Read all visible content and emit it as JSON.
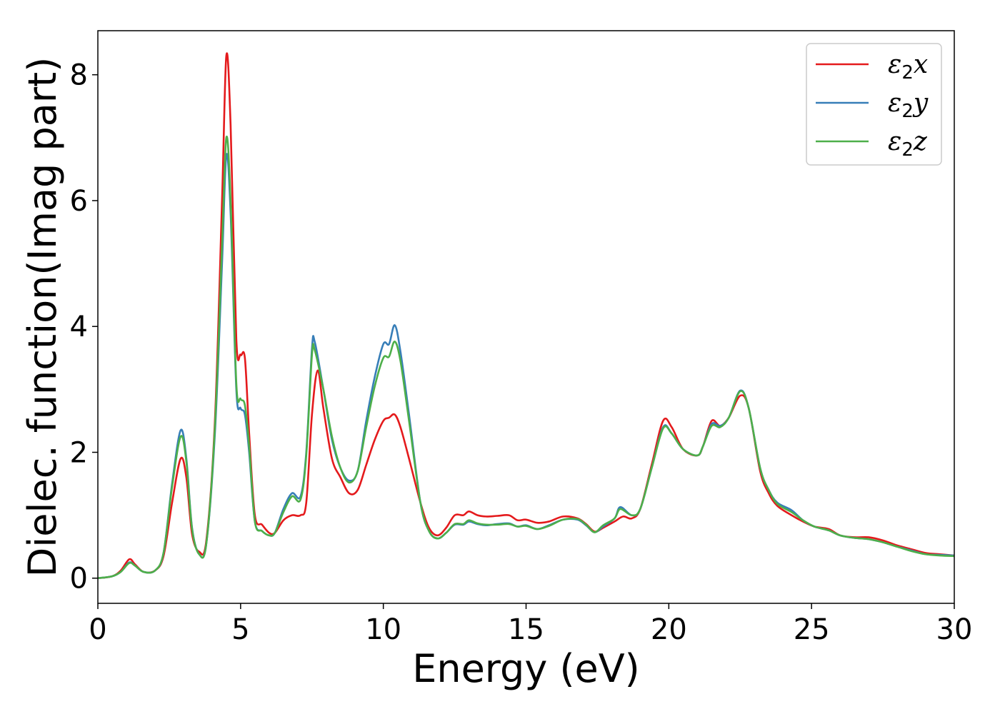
{
  "chart_data": {
    "type": "line",
    "title": "",
    "xlabel": "Energy (eV)",
    "ylabel": "Dielec. function(Imag part)",
    "xlim": [
      0,
      30
    ],
    "ylim": [
      -0.4,
      8.7
    ],
    "xticks": [
      0,
      5,
      10,
      15,
      20,
      25,
      30
    ],
    "yticks": [
      0,
      2,
      4,
      6,
      8
    ],
    "grid": false,
    "legend_position": "top-right",
    "series": [
      {
        "name": "ε2x",
        "legend": {
          "base": "ε",
          "sub": "2",
          "tail": "x"
        },
        "color": "#e41a1c",
        "points": [
          [
            0,
            0
          ],
          [
            0.5,
            0.03
          ],
          [
            0.8,
            0.12
          ],
          [
            1.1,
            0.3
          ],
          [
            1.3,
            0.22
          ],
          [
            1.6,
            0.1
          ],
          [
            2.0,
            0.12
          ],
          [
            2.3,
            0.35
          ],
          [
            2.6,
            1.2
          ],
          [
            2.9,
            1.9
          ],
          [
            3.1,
            1.6
          ],
          [
            3.3,
            0.7
          ],
          [
            3.55,
            0.42
          ],
          [
            3.8,
            0.6
          ],
          [
            4.1,
            2.5
          ],
          [
            4.35,
            6.0
          ],
          [
            4.5,
            8.3
          ],
          [
            4.65,
            7.2
          ],
          [
            4.85,
            3.8
          ],
          [
            5.0,
            3.55
          ],
          [
            5.15,
            3.5
          ],
          [
            5.3,
            2.3
          ],
          [
            5.5,
            1.0
          ],
          [
            5.75,
            0.85
          ],
          [
            6.0,
            0.72
          ],
          [
            6.2,
            0.72
          ],
          [
            6.5,
            0.92
          ],
          [
            6.8,
            1.0
          ],
          [
            7.1,
            1.0
          ],
          [
            7.3,
            1.2
          ],
          [
            7.5,
            2.6
          ],
          [
            7.7,
            3.3
          ],
          [
            7.9,
            2.7
          ],
          [
            8.2,
            1.9
          ],
          [
            8.5,
            1.6
          ],
          [
            8.8,
            1.35
          ],
          [
            9.1,
            1.4
          ],
          [
            9.4,
            1.8
          ],
          [
            9.7,
            2.2
          ],
          [
            10.0,
            2.5
          ],
          [
            10.2,
            2.55
          ],
          [
            10.4,
            2.6
          ],
          [
            10.6,
            2.4
          ],
          [
            10.9,
            1.9
          ],
          [
            11.3,
            1.2
          ],
          [
            11.6,
            0.8
          ],
          [
            11.9,
            0.68
          ],
          [
            12.2,
            0.8
          ],
          [
            12.5,
            1.0
          ],
          [
            12.8,
            1.0
          ],
          [
            13.0,
            1.06
          ],
          [
            13.3,
            1.0
          ],
          [
            13.6,
            0.98
          ],
          [
            14.0,
            0.99
          ],
          [
            14.4,
            1.0
          ],
          [
            14.7,
            0.92
          ],
          [
            15.0,
            0.93
          ],
          [
            15.4,
            0.88
          ],
          [
            15.8,
            0.9
          ],
          [
            16.3,
            0.98
          ],
          [
            16.8,
            0.95
          ],
          [
            17.1,
            0.86
          ],
          [
            17.4,
            0.74
          ],
          [
            17.7,
            0.8
          ],
          [
            18.1,
            0.9
          ],
          [
            18.4,
            0.98
          ],
          [
            18.7,
            0.95
          ],
          [
            19.0,
            1.1
          ],
          [
            19.4,
            1.8
          ],
          [
            19.8,
            2.5
          ],
          [
            20.1,
            2.4
          ],
          [
            20.5,
            2.05
          ],
          [
            21.0,
            1.95
          ],
          [
            21.2,
            2.1
          ],
          [
            21.5,
            2.5
          ],
          [
            21.8,
            2.42
          ],
          [
            22.1,
            2.55
          ],
          [
            22.5,
            2.9
          ],
          [
            22.8,
            2.7
          ],
          [
            23.2,
            1.7
          ],
          [
            23.5,
            1.35
          ],
          [
            23.8,
            1.15
          ],
          [
            24.3,
            1.0
          ],
          [
            24.7,
            0.9
          ],
          [
            25.1,
            0.82
          ],
          [
            25.6,
            0.78
          ],
          [
            26.0,
            0.68
          ],
          [
            26.5,
            0.65
          ],
          [
            27.0,
            0.65
          ],
          [
            27.5,
            0.6
          ],
          [
            28.0,
            0.52
          ],
          [
            28.5,
            0.46
          ],
          [
            29.0,
            0.4
          ],
          [
            29.5,
            0.38
          ],
          [
            30.0,
            0.36
          ]
        ]
      },
      {
        "name": "ε2y",
        "legend": {
          "base": "ε",
          "sub": "2",
          "tail": "y"
        },
        "color": "#377eb8",
        "points": [
          [
            0,
            0
          ],
          [
            0.5,
            0.03
          ],
          [
            0.8,
            0.1
          ],
          [
            1.1,
            0.25
          ],
          [
            1.3,
            0.2
          ],
          [
            1.6,
            0.1
          ],
          [
            2.0,
            0.12
          ],
          [
            2.3,
            0.4
          ],
          [
            2.6,
            1.5
          ],
          [
            2.9,
            2.35
          ],
          [
            3.1,
            1.9
          ],
          [
            3.3,
            0.8
          ],
          [
            3.55,
            0.38
          ],
          [
            3.8,
            0.55
          ],
          [
            4.1,
            2.3
          ],
          [
            4.35,
            5.0
          ],
          [
            4.5,
            6.72
          ],
          [
            4.65,
            5.8
          ],
          [
            4.85,
            3.0
          ],
          [
            5.0,
            2.7
          ],
          [
            5.15,
            2.6
          ],
          [
            5.3,
            2.0
          ],
          [
            5.5,
            0.9
          ],
          [
            5.75,
            0.75
          ],
          [
            6.0,
            0.68
          ],
          [
            6.2,
            0.72
          ],
          [
            6.5,
            1.1
          ],
          [
            6.8,
            1.35
          ],
          [
            7.1,
            1.3
          ],
          [
            7.3,
            2.0
          ],
          [
            7.5,
            3.65
          ],
          [
            7.6,
            3.75
          ],
          [
            7.9,
            3.0
          ],
          [
            8.2,
            2.2
          ],
          [
            8.5,
            1.75
          ],
          [
            8.8,
            1.55
          ],
          [
            9.1,
            1.7
          ],
          [
            9.4,
            2.5
          ],
          [
            9.7,
            3.2
          ],
          [
            10.0,
            3.72
          ],
          [
            10.2,
            3.72
          ],
          [
            10.4,
            4.02
          ],
          [
            10.6,
            3.6
          ],
          [
            10.9,
            2.6
          ],
          [
            11.3,
            1.2
          ],
          [
            11.6,
            0.75
          ],
          [
            11.9,
            0.63
          ],
          [
            12.2,
            0.72
          ],
          [
            12.5,
            0.85
          ],
          [
            12.8,
            0.85
          ],
          [
            13.0,
            0.9
          ],
          [
            13.3,
            0.86
          ],
          [
            13.6,
            0.84
          ],
          [
            14.0,
            0.86
          ],
          [
            14.4,
            0.87
          ],
          [
            14.7,
            0.82
          ],
          [
            15.0,
            0.84
          ],
          [
            15.4,
            0.78
          ],
          [
            15.8,
            0.84
          ],
          [
            16.3,
            0.93
          ],
          [
            16.8,
            0.93
          ],
          [
            17.1,
            0.84
          ],
          [
            17.4,
            0.73
          ],
          [
            17.7,
            0.82
          ],
          [
            18.1,
            0.95
          ],
          [
            18.3,
            1.13
          ],
          [
            18.7,
            1.0
          ],
          [
            19.0,
            1.1
          ],
          [
            19.4,
            1.75
          ],
          [
            19.8,
            2.4
          ],
          [
            20.1,
            2.3
          ],
          [
            20.5,
            2.05
          ],
          [
            21.0,
            1.95
          ],
          [
            21.2,
            2.1
          ],
          [
            21.5,
            2.45
          ],
          [
            21.8,
            2.42
          ],
          [
            22.1,
            2.55
          ],
          [
            22.5,
            2.98
          ],
          [
            22.8,
            2.7
          ],
          [
            23.2,
            1.75
          ],
          [
            23.5,
            1.4
          ],
          [
            23.8,
            1.2
          ],
          [
            24.3,
            1.08
          ],
          [
            24.7,
            0.92
          ],
          [
            25.1,
            0.82
          ],
          [
            25.6,
            0.76
          ],
          [
            26.0,
            0.68
          ],
          [
            26.5,
            0.64
          ],
          [
            27.0,
            0.62
          ],
          [
            27.5,
            0.57
          ],
          [
            28.0,
            0.5
          ],
          [
            28.5,
            0.44
          ],
          [
            29.0,
            0.38
          ],
          [
            29.5,
            0.37
          ],
          [
            30.0,
            0.36
          ]
        ]
      },
      {
        "name": "ε2z",
        "legend": {
          "base": "ε",
          "sub": "2",
          "tail": "z"
        },
        "color": "#4daf4a",
        "points": [
          [
            0,
            0
          ],
          [
            0.5,
            0.03
          ],
          [
            0.8,
            0.1
          ],
          [
            1.1,
            0.24
          ],
          [
            1.3,
            0.2
          ],
          [
            1.6,
            0.1
          ],
          [
            2.0,
            0.12
          ],
          [
            2.3,
            0.4
          ],
          [
            2.6,
            1.45
          ],
          [
            2.9,
            2.25
          ],
          [
            3.1,
            1.85
          ],
          [
            3.3,
            0.78
          ],
          [
            3.55,
            0.38
          ],
          [
            3.8,
            0.55
          ],
          [
            4.1,
            2.4
          ],
          [
            4.35,
            5.3
          ],
          [
            4.5,
            7.0
          ],
          [
            4.65,
            6.0
          ],
          [
            4.85,
            3.1
          ],
          [
            5.0,
            2.85
          ],
          [
            5.15,
            2.75
          ],
          [
            5.3,
            2.1
          ],
          [
            5.5,
            0.9
          ],
          [
            5.75,
            0.75
          ],
          [
            6.0,
            0.68
          ],
          [
            6.2,
            0.72
          ],
          [
            6.5,
            1.05
          ],
          [
            6.8,
            1.3
          ],
          [
            7.1,
            1.25
          ],
          [
            7.3,
            1.95
          ],
          [
            7.5,
            3.55
          ],
          [
            7.6,
            3.62
          ],
          [
            7.9,
            3.0
          ],
          [
            8.2,
            2.25
          ],
          [
            8.5,
            1.75
          ],
          [
            8.8,
            1.52
          ],
          [
            9.1,
            1.7
          ],
          [
            9.4,
            2.4
          ],
          [
            9.7,
            3.05
          ],
          [
            10.0,
            3.5
          ],
          [
            10.2,
            3.52
          ],
          [
            10.4,
            3.76
          ],
          [
            10.6,
            3.45
          ],
          [
            10.9,
            2.5
          ],
          [
            11.3,
            1.2
          ],
          [
            11.6,
            0.75
          ],
          [
            11.9,
            0.63
          ],
          [
            12.2,
            0.72
          ],
          [
            12.5,
            0.86
          ],
          [
            12.8,
            0.86
          ],
          [
            13.0,
            0.92
          ],
          [
            13.3,
            0.87
          ],
          [
            13.6,
            0.85
          ],
          [
            14.0,
            0.85
          ],
          [
            14.4,
            0.86
          ],
          [
            14.7,
            0.82
          ],
          [
            15.0,
            0.83
          ],
          [
            15.4,
            0.78
          ],
          [
            15.8,
            0.83
          ],
          [
            16.3,
            0.93
          ],
          [
            16.8,
            0.94
          ],
          [
            17.1,
            0.85
          ],
          [
            17.4,
            0.73
          ],
          [
            17.7,
            0.84
          ],
          [
            18.1,
            0.95
          ],
          [
            18.3,
            1.1
          ],
          [
            18.7,
            1.0
          ],
          [
            19.0,
            1.1
          ],
          [
            19.4,
            1.75
          ],
          [
            19.8,
            2.38
          ],
          [
            20.1,
            2.3
          ],
          [
            20.5,
            2.05
          ],
          [
            21.0,
            1.95
          ],
          [
            21.2,
            2.1
          ],
          [
            21.5,
            2.42
          ],
          [
            21.8,
            2.4
          ],
          [
            22.1,
            2.55
          ],
          [
            22.5,
            2.97
          ],
          [
            22.8,
            2.7
          ],
          [
            23.2,
            1.75
          ],
          [
            23.5,
            1.4
          ],
          [
            23.8,
            1.18
          ],
          [
            24.3,
            1.05
          ],
          [
            24.7,
            0.92
          ],
          [
            25.1,
            0.82
          ],
          [
            25.6,
            0.76
          ],
          [
            26.0,
            0.68
          ],
          [
            26.5,
            0.64
          ],
          [
            27.0,
            0.62
          ],
          [
            27.5,
            0.57
          ],
          [
            28.0,
            0.5
          ],
          [
            28.5,
            0.43
          ],
          [
            29.0,
            0.38
          ],
          [
            29.5,
            0.36
          ],
          [
            30.0,
            0.35
          ]
        ]
      }
    ]
  }
}
